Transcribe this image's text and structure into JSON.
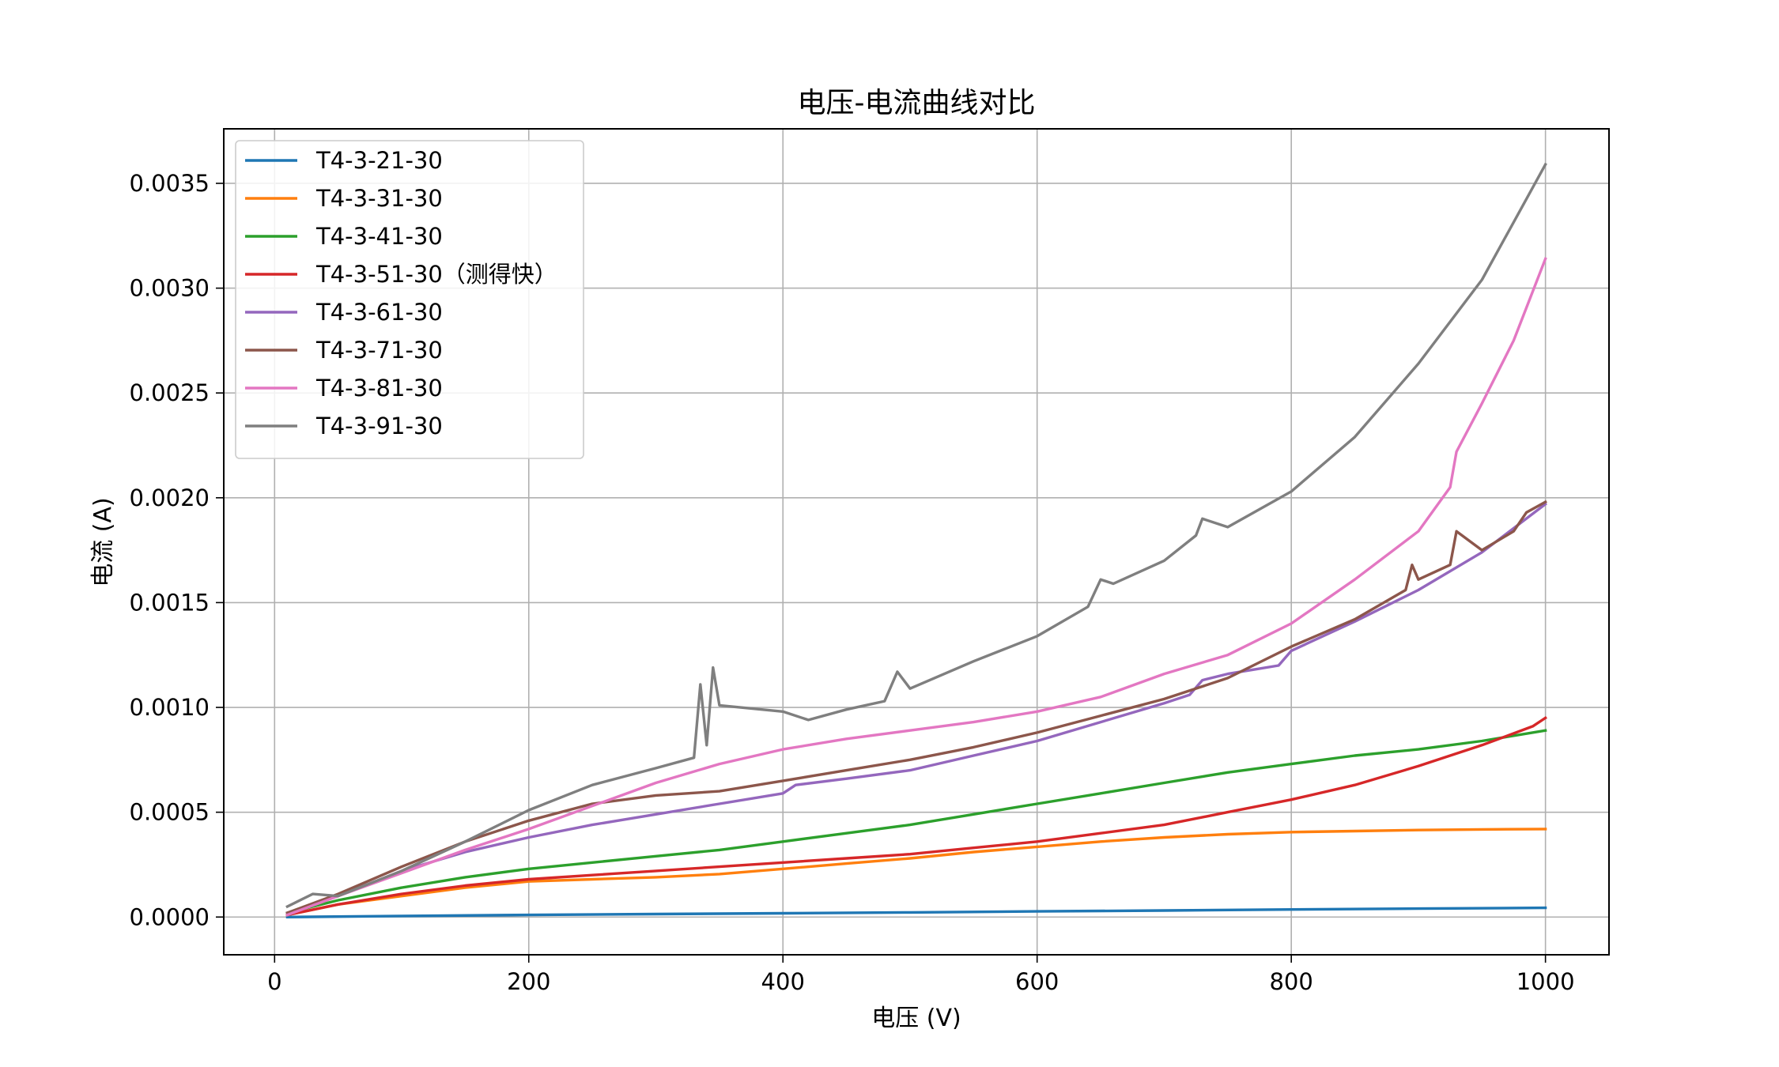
{
  "chart_data": {
    "type": "line",
    "title": "电压-电流曲线对比",
    "xlabel": "电压 (V)",
    "ylabel": "电流 (A)",
    "xlim": [
      -40,
      1050
    ],
    "ylim": [
      -0.00018,
      0.00376
    ],
    "xticks": [
      0,
      200,
      400,
      600,
      800,
      1000
    ],
    "yticks": [
      0.0,
      0.0005,
      0.001,
      0.0015,
      0.002,
      0.0025,
      0.003,
      0.0035
    ],
    "xtick_labels": [
      "0",
      "200",
      "400",
      "600",
      "800",
      "1000"
    ],
    "ytick_labels": [
      "0.0000",
      "0.0005",
      "0.0010",
      "0.0015",
      "0.0020",
      "0.0025",
      "0.0030",
      "0.0035"
    ],
    "grid": true,
    "legend_position": "top-left",
    "series": [
      {
        "name": "T4-3-21-30",
        "color": "#1f77b4",
        "x": [
          10,
          100,
          200,
          300,
          400,
          500,
          600,
          700,
          800,
          900,
          1000
        ],
        "y": [
          0.0,
          5e-06,
          1e-05,
          1.4e-05,
          1.8e-05,
          2.2e-05,
          2.7e-05,
          3.1e-05,
          3.6e-05,
          4e-05,
          4.4e-05
        ]
      },
      {
        "name": "T4-3-31-30",
        "color": "#ff7f0e",
        "x": [
          10,
          50,
          100,
          150,
          200,
          250,
          300,
          350,
          400,
          450,
          500,
          550,
          600,
          650,
          700,
          750,
          800,
          850,
          900,
          950,
          1000
        ],
        "y": [
          1e-05,
          6e-05,
          0.0001,
          0.00014,
          0.00017,
          0.00018,
          0.00019,
          0.000205,
          0.00023,
          0.000255,
          0.00028,
          0.00031,
          0.000335,
          0.00036,
          0.00038,
          0.000395,
          0.000405,
          0.00041,
          0.000415,
          0.000418,
          0.00042
        ]
      },
      {
        "name": "T4-3-41-30",
        "color": "#2ca02c",
        "x": [
          10,
          50,
          100,
          150,
          200,
          250,
          300,
          350,
          400,
          450,
          500,
          550,
          600,
          650,
          700,
          750,
          800,
          850,
          900,
          950,
          1000
        ],
        "y": [
          2e-05,
          8e-05,
          0.00014,
          0.00019,
          0.00023,
          0.00026,
          0.00029,
          0.00032,
          0.00036,
          0.0004,
          0.00044,
          0.00049,
          0.00054,
          0.00059,
          0.00064,
          0.00069,
          0.00073,
          0.00077,
          0.0008,
          0.00084,
          0.00089
        ]
      },
      {
        "name": "T4-3-51-30（测得快）",
        "color": "#d62728",
        "x": [
          10,
          50,
          100,
          150,
          200,
          250,
          300,
          350,
          400,
          450,
          500,
          550,
          600,
          650,
          700,
          750,
          800,
          850,
          900,
          950,
          990,
          1000
        ],
        "y": [
          1e-05,
          6e-05,
          0.00011,
          0.00015,
          0.00018,
          0.0002,
          0.00022,
          0.00024,
          0.00026,
          0.00028,
          0.0003,
          0.00033,
          0.00036,
          0.0004,
          0.00044,
          0.0005,
          0.00056,
          0.00063,
          0.00072,
          0.00082,
          0.00091,
          0.00095
        ]
      },
      {
        "name": "T4-3-61-30",
        "color": "#9467bd",
        "x": [
          10,
          50,
          100,
          150,
          200,
          250,
          300,
          350,
          400,
          410,
          450,
          500,
          550,
          600,
          650,
          700,
          720,
          730,
          750,
          770,
          790,
          800,
          850,
          900,
          950,
          1000
        ],
        "y": [
          2e-05,
          0.0001,
          0.00022,
          0.00031,
          0.00038,
          0.00044,
          0.00049,
          0.00054,
          0.00059,
          0.00063,
          0.00066,
          0.0007,
          0.00077,
          0.00084,
          0.00093,
          0.00102,
          0.00106,
          0.00113,
          0.00116,
          0.00118,
          0.0012,
          0.00127,
          0.00141,
          0.00156,
          0.00174,
          0.00197
        ]
      },
      {
        "name": "T4-3-71-30",
        "color": "#8c564b",
        "x": [
          10,
          50,
          100,
          150,
          200,
          250,
          300,
          350,
          400,
          450,
          500,
          550,
          600,
          650,
          700,
          750,
          800,
          850,
          890,
          895,
          900,
          925,
          930,
          950,
          975,
          985,
          1000
        ],
        "y": [
          2e-05,
          0.00011,
          0.00024,
          0.00036,
          0.00046,
          0.00054,
          0.00058,
          0.0006,
          0.00065,
          0.0007,
          0.00075,
          0.00081,
          0.00088,
          0.00096,
          0.00104,
          0.00114,
          0.00129,
          0.00142,
          0.00156,
          0.00168,
          0.00161,
          0.00168,
          0.00184,
          0.00175,
          0.00184,
          0.00193,
          0.00198
        ]
      },
      {
        "name": "T4-3-81-30",
        "color": "#e377c2",
        "x": [
          10,
          50,
          100,
          150,
          200,
          250,
          300,
          350,
          400,
          450,
          500,
          550,
          600,
          650,
          700,
          750,
          800,
          850,
          900,
          925,
          930,
          950,
          975,
          1000
        ],
        "y": [
          1e-05,
          0.0001,
          0.00021,
          0.00032,
          0.00042,
          0.00053,
          0.00064,
          0.00073,
          0.0008,
          0.00085,
          0.00089,
          0.00093,
          0.00098,
          0.00105,
          0.00116,
          0.00125,
          0.0014,
          0.00161,
          0.00184,
          0.00205,
          0.00222,
          0.00245,
          0.00275,
          0.00314
        ]
      },
      {
        "name": "T4-3-91-30",
        "color": "#7f7f7f",
        "x": [
          10,
          30,
          50,
          100,
          150,
          200,
          250,
          300,
          330,
          335,
          340,
          345,
          350,
          400,
          420,
          450,
          480,
          490,
          500,
          550,
          600,
          640,
          650,
          660,
          700,
          725,
          730,
          750,
          800,
          850,
          900,
          950,
          1000
        ],
        "y": [
          5e-05,
          0.00011,
          0.0001,
          0.00022,
          0.00036,
          0.00051,
          0.00063,
          0.00071,
          0.00076,
          0.00111,
          0.00082,
          0.00119,
          0.00101,
          0.00098,
          0.00094,
          0.00099,
          0.00103,
          0.00117,
          0.00109,
          0.00122,
          0.00134,
          0.00148,
          0.00161,
          0.00159,
          0.0017,
          0.00182,
          0.0019,
          0.00186,
          0.00203,
          0.00229,
          0.00264,
          0.00304,
          0.00359
        ]
      }
    ]
  }
}
